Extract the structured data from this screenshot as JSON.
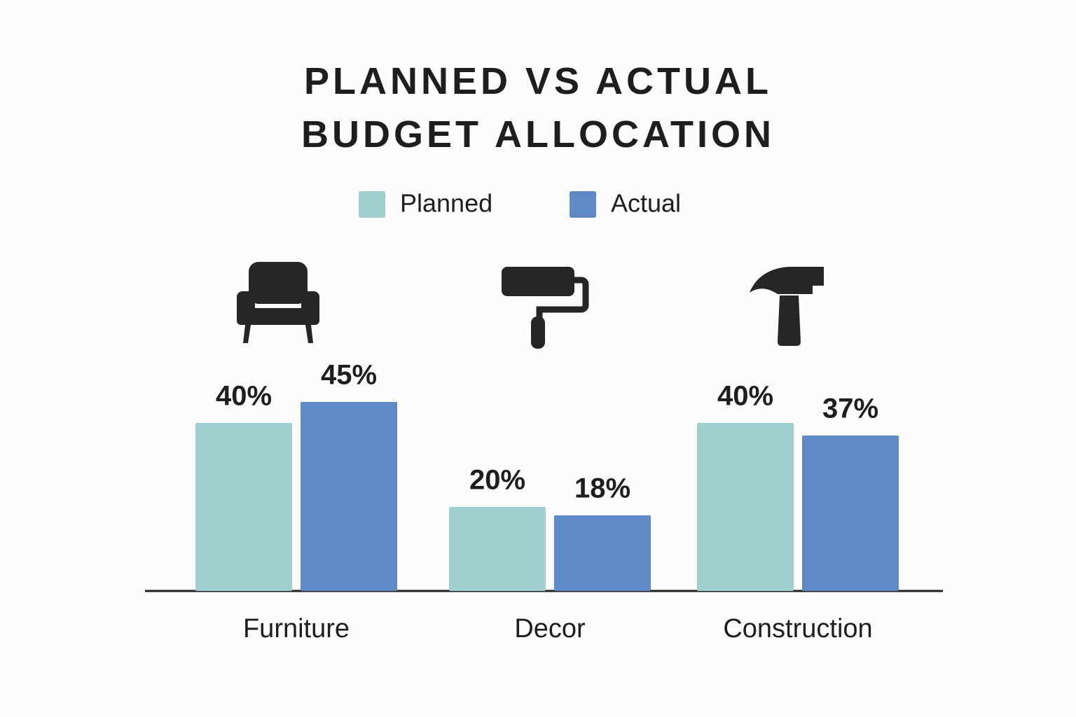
{
  "chart_data": {
    "type": "bar",
    "title": "PLANNED VS ACTUAL BUDGET ALLOCATION",
    "categories": [
      "Furniture",
      "Decor",
      "Construction"
    ],
    "series": [
      {
        "name": "Planned",
        "color": "#9fcfcf",
        "values": [
          40,
          20,
          40
        ],
        "value_labels": [
          "40%",
          "20%",
          "40%"
        ]
      },
      {
        "name": "Actual",
        "color": "#5f8ac6",
        "values": [
          45,
          18,
          37
        ],
        "value_labels": [
          "45%",
          "18%",
          "37%"
        ]
      }
    ]
  }
}
